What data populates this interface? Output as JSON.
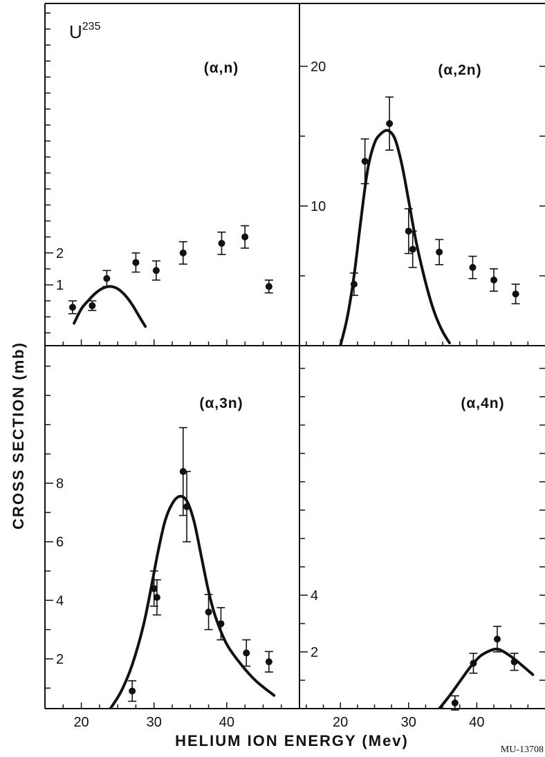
{
  "figure": {
    "nuclide": "U",
    "nuclide_mass": "235",
    "code": "MU-13708"
  },
  "chart_data": [
    {
      "type": "scatter",
      "title": "(α,n)",
      "xlabel": "HELIUM ION ENERGY (Mev)",
      "ylabel": "CROSS SECTION (mb)",
      "xlim": [
        15,
        50
      ],
      "ylim": [
        -0.9,
        9.8
      ],
      "xticks": [
        20,
        30,
        40
      ],
      "yticks": [
        1,
        2
      ],
      "grid": false,
      "points": [
        {
          "x": 18.8,
          "y": 0.3,
          "err": 0.2
        },
        {
          "x": 21.5,
          "y": 0.35,
          "err": 0.15
        },
        {
          "x": 23.5,
          "y": 1.2,
          "err": 0.25
        },
        {
          "x": 27.5,
          "y": 1.7,
          "err": 0.3
        },
        {
          "x": 30.3,
          "y": 1.45,
          "err": 0.3
        },
        {
          "x": 34.0,
          "y": 2.0,
          "err": 0.35
        },
        {
          "x": 39.3,
          "y": 2.3,
          "err": 0.35
        },
        {
          "x": 42.5,
          "y": 2.5,
          "err": 0.35
        },
        {
          "x": 45.8,
          "y": 0.95,
          "err": 0.2
        }
      ],
      "curve": [
        [
          19,
          -0.2
        ],
        [
          20,
          0.25
        ],
        [
          21,
          0.52
        ],
        [
          22,
          0.75
        ],
        [
          23,
          0.9
        ],
        [
          24,
          0.95
        ],
        [
          25,
          0.88
        ],
        [
          26,
          0.68
        ],
        [
          27,
          0.38
        ],
        [
          28,
          0.0
        ],
        [
          28.8,
          -0.3
        ]
      ]
    },
    {
      "type": "scatter",
      "title": "(α,2n)",
      "xlabel": "HELIUM ION ENERGY (Mev)",
      "ylabel": "CROSS SECTION (mb)",
      "xlim": [
        14,
        50
      ],
      "ylim": [
        0,
        24.5
      ],
      "xticks": [
        20,
        30,
        40
      ],
      "yticks": [
        10,
        20
      ],
      "grid": false,
      "points": [
        {
          "x": 22.0,
          "y": 4.4,
          "err": 0.8
        },
        {
          "x": 23.6,
          "y": 13.2,
          "err": 1.6
        },
        {
          "x": 27.2,
          "y": 15.9,
          "err": 1.9
        },
        {
          "x": 30.0,
          "y": 8.2,
          "err": 1.6
        },
        {
          "x": 30.6,
          "y": 6.9,
          "err": 1.3
        },
        {
          "x": 34.5,
          "y": 6.7,
          "err": 0.9
        },
        {
          "x": 39.4,
          "y": 5.6,
          "err": 0.8
        },
        {
          "x": 42.5,
          "y": 4.7,
          "err": 0.8
        },
        {
          "x": 45.7,
          "y": 3.7,
          "err": 0.7
        }
      ],
      "curve": [
        [
          20,
          0
        ],
        [
          21,
          2.0
        ],
        [
          22,
          5.0
        ],
        [
          23,
          9.0
        ],
        [
          24,
          12.6
        ],
        [
          25,
          14.5
        ],
        [
          26,
          15.2
        ],
        [
          27,
          15.4
        ],
        [
          28,
          14.8
        ],
        [
          29,
          13.0
        ],
        [
          30,
          10.4
        ],
        [
          31,
          7.7
        ],
        [
          32,
          5.5
        ],
        [
          33,
          3.6
        ],
        [
          34,
          2.1
        ],
        [
          35,
          1.0
        ],
        [
          36,
          0.2
        ]
      ]
    },
    {
      "type": "scatter",
      "title": "(α,3n)",
      "xlabel": "HELIUM ION ENERGY (Mev)",
      "ylabel": "CROSS SECTION (mb)",
      "xlim": [
        15,
        50
      ],
      "ylim": [
        0.3,
        12.7
      ],
      "xticks": [
        20,
        30,
        40
      ],
      "yticks": [
        2,
        4,
        6,
        8
      ],
      "grid": false,
      "points": [
        {
          "x": 27.0,
          "y": 0.9,
          "err": 0.35
        },
        {
          "x": 30.0,
          "y": 4.4,
          "err": 0.6
        },
        {
          "x": 30.4,
          "y": 4.1,
          "err": 0.6
        },
        {
          "x": 34.0,
          "y": 8.4,
          "err": 1.5
        },
        {
          "x": 34.5,
          "y": 7.2,
          "err": 1.2
        },
        {
          "x": 37.5,
          "y": 3.6,
          "err": 0.6
        },
        {
          "x": 39.2,
          "y": 3.2,
          "err": 0.55
        },
        {
          "x": 42.7,
          "y": 2.2,
          "err": 0.45
        },
        {
          "x": 45.8,
          "y": 1.9,
          "err": 0.35
        }
      ],
      "curve": [
        [
          24.0,
          0.3
        ],
        [
          25.5,
          0.9
        ],
        [
          27.0,
          1.8
        ],
        [
          28.5,
          3.1
        ],
        [
          29.5,
          4.3
        ],
        [
          30.5,
          5.6
        ],
        [
          31.5,
          6.7
        ],
        [
          32.5,
          7.3
        ],
        [
          33.5,
          7.55
        ],
        [
          34.5,
          7.4
        ],
        [
          35.5,
          6.7
        ],
        [
          36.5,
          5.5
        ],
        [
          37.5,
          4.3
        ],
        [
          38.5,
          3.4
        ],
        [
          40.0,
          2.5
        ],
        [
          42.0,
          1.8
        ],
        [
          44.0,
          1.25
        ],
        [
          46.5,
          0.75
        ]
      ]
    },
    {
      "type": "scatter",
      "title": "(α,4n)",
      "xlabel": "HELIUM ION ENERGY (Mev)",
      "ylabel": "CROSS SECTION (mb)",
      "xlim": [
        14,
        50
      ],
      "ylim": [
        0,
        12.8
      ],
      "xticks": [
        20,
        30,
        40
      ],
      "yticks": [
        2,
        4
      ],
      "grid": false,
      "points": [
        {
          "x": 36.8,
          "y": 0.2,
          "err": 0.25
        },
        {
          "x": 39.5,
          "y": 1.6,
          "err": 0.35
        },
        {
          "x": 43.0,
          "y": 2.45,
          "err": 0.45
        },
        {
          "x": 45.5,
          "y": 1.65,
          "err": 0.3
        }
      ],
      "curve": [
        [
          34.5,
          0
        ],
        [
          36.0,
          0.45
        ],
        [
          37.5,
          0.95
        ],
        [
          39.0,
          1.45
        ],
        [
          40.5,
          1.85
        ],
        [
          42.0,
          2.05
        ],
        [
          43.0,
          2.1
        ],
        [
          44.0,
          2.0
        ],
        [
          45.5,
          1.75
        ],
        [
          47.0,
          1.45
        ],
        [
          48.2,
          1.2
        ]
      ]
    }
  ]
}
